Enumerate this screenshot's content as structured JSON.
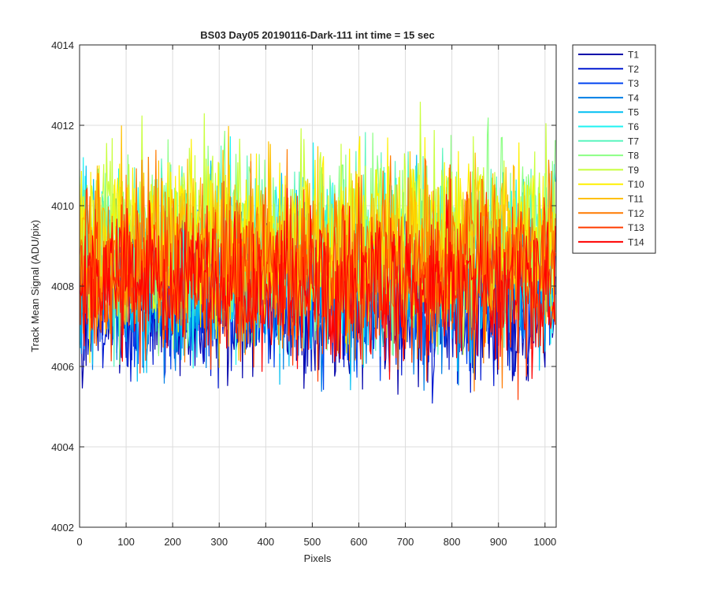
{
  "chart_data": {
    "type": "line",
    "title": "BS03 Day05 20190116-Dark-111 int time = 15 sec",
    "xlabel": "Pixels",
    "ylabel": "Track Mean Signal (ADU/pix)",
    "xlim": [
      0,
      1024
    ],
    "ylim": [
      4002,
      4014
    ],
    "xticks": [
      0,
      100,
      200,
      300,
      400,
      500,
      600,
      700,
      800,
      900,
      1000
    ],
    "yticks": [
      4002,
      4004,
      4006,
      4008,
      4010,
      4012,
      4014
    ],
    "grid": true,
    "legend_position": "outside-top-right",
    "n_points": 1024,
    "note_on_values": "Each series is per-pixel noise around its level; values below are the approximate mean and spread read from the plot.",
    "series": [
      {
        "name": "T1",
        "color": "#0000AA",
        "mean": 4007.4,
        "spread": 0.9
      },
      {
        "name": "T2",
        "color": "#0019D1",
        "mean": 4007.6,
        "spread": 0.9
      },
      {
        "name": "T3",
        "color": "#0044F0",
        "mean": 4007.8,
        "spread": 0.9
      },
      {
        "name": "T4",
        "color": "#007FE6",
        "mean": 4008.0,
        "spread": 1.0
      },
      {
        "name": "T5",
        "color": "#00BFF2",
        "mean": 4008.4,
        "spread": 1.1
      },
      {
        "name": "T6",
        "color": "#1EF2F2",
        "mean": 4008.8,
        "spread": 1.1
      },
      {
        "name": "T7",
        "color": "#5AF5BE",
        "mean": 4009.0,
        "spread": 1.1
      },
      {
        "name": "T8",
        "color": "#8CFF84",
        "mean": 4009.1,
        "spread": 1.1
      },
      {
        "name": "T9",
        "color": "#C8FF3C",
        "mean": 4009.2,
        "spread": 1.1
      },
      {
        "name": "T10",
        "color": "#FFF000",
        "mean": 4009.1,
        "spread": 1.1
      },
      {
        "name": "T11",
        "color": "#FFC000",
        "mean": 4008.9,
        "spread": 1.1
      },
      {
        "name": "T12",
        "color": "#FF7A00",
        "mean": 4008.6,
        "spread": 1.1
      },
      {
        "name": "T13",
        "color": "#FF3C00",
        "mean": 4008.3,
        "spread": 1.0
      },
      {
        "name": "T14",
        "color": "#FF0000",
        "mean": 4008.0,
        "spread": 0.9
      }
    ]
  }
}
